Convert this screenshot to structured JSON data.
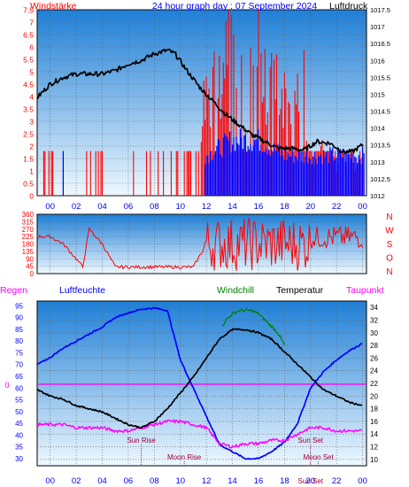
{
  "header": {
    "left_label": "Windstärke",
    "title": "24 hour graph day : 07 September 2024",
    "right_label": "Luftdruck"
  },
  "colors": {
    "wind": "#ff0000",
    "gust": "#0000ff",
    "pressure": "#000000",
    "humidity": "#0000ff",
    "temperature": "#000000",
    "windchill": "#008000",
    "dewpoint": "#ff00ff",
    "rain": "#ff00ff",
    "axis_left": "#0000ff",
    "sky_top": "#1f7fd6",
    "sky_bottom": "#eef8ff"
  },
  "x_hour_labels": [
    "00",
    "02",
    "04",
    "06",
    "08",
    "10",
    "12",
    "14",
    "16",
    "18",
    "20",
    "22",
    "00"
  ],
  "chart_data": [
    {
      "type": "line",
      "title": "24 hour graph day : 07 September 2024",
      "left_axis": {
        "label": "Windstärke",
        "ticks": [
          "0",
          "0.5",
          "1",
          "1.5",
          "2",
          "2.5",
          "3",
          "3.5",
          "4",
          "4.5",
          "5",
          "5.5",
          "6",
          "6.5",
          "7",
          "7.5"
        ],
        "range": [
          0,
          7.5
        ]
      },
      "right_axis": {
        "label": "Luftdruck",
        "ticks": [
          "1012",
          "1012.5",
          "1013",
          "1013.5",
          "1014",
          "1014.5",
          "1015",
          "1015.5",
          "1016",
          "1016.5",
          "1017",
          "1017.5"
        ],
        "range": [
          1012,
          1017.5
        ]
      },
      "x_range_hours": [
        -1,
        24.3
      ],
      "series": [
        {
          "name": "Luftdruck",
          "axis": "right",
          "points": [
            [
              -1.0,
              1014.9
            ],
            [
              0.0,
              1015.3
            ],
            [
              1.0,
              1015.5
            ],
            [
              2.0,
              1015.6
            ],
            [
              3.0,
              1015.6
            ],
            [
              4.0,
              1015.6
            ],
            [
              5.0,
              1015.7
            ],
            [
              6.0,
              1015.9
            ],
            [
              7.0,
              1016.0
            ],
            [
              8.0,
              1016.2
            ],
            [
              9.0,
              1016.3
            ],
            [
              9.6,
              1016.2
            ],
            [
              10.5,
              1015.7
            ],
            [
              11.5,
              1015.2
            ],
            [
              12.5,
              1014.8
            ],
            [
              13.5,
              1014.4
            ],
            [
              14.5,
              1014.1
            ],
            [
              15.5,
              1013.8
            ],
            [
              16.5,
              1013.6
            ],
            [
              17.5,
              1013.4
            ],
            [
              18.5,
              1013.4
            ],
            [
              19.5,
              1013.35
            ],
            [
              20.5,
              1013.6
            ],
            [
              21.5,
              1013.55
            ],
            [
              22.5,
              1013.3
            ],
            [
              23.2,
              1013.3
            ],
            [
              24.0,
              1013.5
            ]
          ]
        },
        {
          "name": "Windstärke",
          "axis": "left",
          "points": [
            [
              -1.0,
              1.8
            ],
            [
              0.0,
              1.8
            ],
            [
              1.0,
              0.0
            ],
            [
              4.0,
              1.8
            ],
            [
              4.2,
              0.0
            ],
            [
              8.0,
              1.8
            ],
            [
              9.0,
              1.8
            ],
            [
              10.0,
              1.8
            ],
            [
              11.0,
              1.8
            ],
            [
              12.0,
              5.5
            ],
            [
              13.0,
              5.5
            ],
            [
              13.8,
              7.5
            ],
            [
              14.2,
              5.5
            ],
            [
              15.0,
              5.0
            ],
            [
              15.8,
              7.5
            ],
            [
              16.5,
              5.5
            ],
            [
              17.5,
              5.5
            ],
            [
              18.5,
              5.0
            ],
            [
              19.5,
              5.5
            ],
            [
              20.0,
              1.8
            ],
            [
              21.0,
              2.5
            ],
            [
              22.0,
              1.8
            ],
            [
              23.0,
              1.8
            ],
            [
              24.0,
              1.8
            ]
          ]
        },
        {
          "name": "",
          "axis": "left",
          "points": [
            [
              12.0,
              1.8
            ],
            [
              14.0,
              2.5
            ],
            [
              16.0,
              2.5
            ],
            [
              18.0,
              1.8
            ],
            [
              20.0,
              1.8
            ],
            [
              22.0,
              1.8
            ],
            [
              24.0,
              1.8
            ]
          ]
        }
      ]
    },
    {
      "type": "line",
      "left_axis": {
        "ticks": [
          "0",
          "45",
          "90",
          "135",
          "180",
          "225",
          "270",
          "315",
          "360"
        ],
        "range": [
          0,
          360
        ]
      },
      "right_axis": {
        "ticks": [
          "N",
          "W",
          "S",
          "O",
          "N"
        ]
      },
      "series": [
        {
          "name": "",
          "points": [
            [
              -1.0,
              225
            ],
            [
              0.0,
              225
            ],
            [
              1.0,
              180
            ],
            [
              2.0,
              90
            ],
            [
              2.5,
              40
            ],
            [
              3.0,
              270
            ],
            [
              4.0,
              180
            ],
            [
              5.0,
              40
            ],
            [
              6.0,
              40
            ],
            [
              7.0,
              40
            ],
            [
              8.0,
              40
            ],
            [
              9.0,
              40
            ],
            [
              10.0,
              40
            ],
            [
              11.0,
              40
            ],
            [
              12.0,
              180
            ],
            [
              13.0,
              270
            ],
            [
              14.0,
              90
            ],
            [
              15.0,
              300
            ],
            [
              16.0,
              180
            ],
            [
              17.0,
              90
            ],
            [
              18.0,
              270
            ],
            [
              19.0,
              40
            ],
            [
              20.0,
              270
            ],
            [
              21.0,
              180
            ],
            [
              22.0,
              270
            ],
            [
              23.0,
              225
            ],
            [
              24.0,
              270
            ]
          ]
        }
      ]
    },
    {
      "type": "line",
      "labels": [
        "Regen",
        "Luftfeuchte",
        "Windchill",
        "Temperatur",
        "Taupunkt"
      ],
      "humidity_axis": {
        "ticks": [
          "30",
          "35",
          "40",
          "45",
          "50",
          "55",
          "60",
          "65",
          "70",
          "75",
          "80",
          "85",
          "90",
          "95"
        ],
        "range": [
          27,
          97
        ]
      },
      "temperature_axis": {
        "ticks": [
          "10",
          "12",
          "14",
          "16",
          "18",
          "20",
          "22",
          "24",
          "26",
          "28",
          "30",
          "32",
          "34"
        ],
        "range": [
          9,
          35
        ]
      },
      "rain_value_label": "0",
      "annotations": [
        "Sun Rise",
        "Moon Rise",
        "Sun Set",
        "Moon Set"
      ],
      "series": [
        {
          "name": "Luftfeuchte",
          "axis": "humidity",
          "points": [
            [
              -1.0,
              70
            ],
            [
              0.0,
              73
            ],
            [
              1.0,
              77
            ],
            [
              2.0,
              80
            ],
            [
              3.0,
              83
            ],
            [
              4.0,
              86
            ],
            [
              5.0,
              90
            ],
            [
              6.0,
              92
            ],
            [
              7.0,
              93.5
            ],
            [
              8.0,
              94
            ],
            [
              9.0,
              93
            ],
            [
              10.0,
              72
            ],
            [
              11.0,
              60
            ],
            [
              12.0,
              48
            ],
            [
              13.0,
              36
            ],
            [
              14.0,
              33
            ],
            [
              15.0,
              30
            ],
            [
              16.0,
              30
            ],
            [
              17.0,
              33
            ],
            [
              18.0,
              37
            ],
            [
              19.0,
              45
            ],
            [
              20.0,
              60
            ],
            [
              21.0,
              67
            ],
            [
              22.0,
              72
            ],
            [
              23.0,
              76
            ],
            [
              24.0,
              79
            ]
          ]
        },
        {
          "name": "Temperatur",
          "axis": "temperature",
          "points": [
            [
              -1.0,
              21
            ],
            [
              0.0,
              20
            ],
            [
              1.0,
              19.5
            ],
            [
              2.0,
              18.5
            ],
            [
              3.0,
              18
            ],
            [
              4.0,
              17.5
            ],
            [
              5.0,
              16.5
            ],
            [
              6.0,
              15.5
            ],
            [
              7.0,
              15
            ],
            [
              8.0,
              16
            ],
            [
              9.0,
              18
            ],
            [
              10.0,
              20.5
            ],
            [
              11.0,
              23
            ],
            [
              12.0,
              26
            ],
            [
              13.0,
              29
            ],
            [
              14.0,
              30.5
            ],
            [
              15.0,
              30.5
            ],
            [
              16.0,
              30
            ],
            [
              17.0,
              29
            ],
            [
              18.0,
              27
            ],
            [
              19.0,
              25
            ],
            [
              20.0,
              23
            ],
            [
              21.0,
              21
            ],
            [
              22.0,
              20
            ],
            [
              23.0,
              19
            ],
            [
              24.0,
              18.5
            ]
          ]
        },
        {
          "name": "Windchill",
          "axis": "temperature",
          "points": [
            [
              13.2,
              31
            ],
            [
              13.5,
              32
            ],
            [
              14.0,
              33
            ],
            [
              14.5,
              33.5
            ],
            [
              15.0,
              33.5
            ],
            [
              15.5,
              33.5
            ],
            [
              16.0,
              33
            ],
            [
              16.5,
              32
            ],
            [
              17.0,
              31
            ],
            [
              17.5,
              30
            ],
            [
              18.0,
              28
            ]
          ]
        },
        {
          "name": "Taupunkt",
          "axis": "temperature",
          "points": [
            [
              -1.0,
              15.5
            ],
            [
              0.0,
              15.5
            ],
            [
              1.0,
              15.5
            ],
            [
              2.0,
              15
            ],
            [
              3.0,
              15
            ],
            [
              4.0,
              15
            ],
            [
              5.0,
              14.5
            ],
            [
              6.0,
              14.5
            ],
            [
              7.0,
              15
            ],
            [
              8.0,
              15.5
            ],
            [
              9.0,
              16
            ],
            [
              10.0,
              16
            ],
            [
              11.0,
              15.5
            ],
            [
              12.0,
              15
            ],
            [
              13.0,
              12.5
            ],
            [
              14.0,
              12
            ],
            [
              15.0,
              12.5
            ],
            [
              16.0,
              12.5
            ],
            [
              17.0,
              13
            ],
            [
              18.0,
              13
            ],
            [
              19.0,
              14
            ],
            [
              20.0,
              15
            ],
            [
              21.0,
              15
            ],
            [
              22.0,
              14.5
            ],
            [
              23.0,
              14.5
            ],
            [
              24.0,
              14.5
            ]
          ]
        },
        {
          "name": "Regen",
          "axis": "rain",
          "points": [
            [
              -1.0,
              0
            ],
            [
              24.3,
              0
            ]
          ]
        }
      ]
    }
  ]
}
